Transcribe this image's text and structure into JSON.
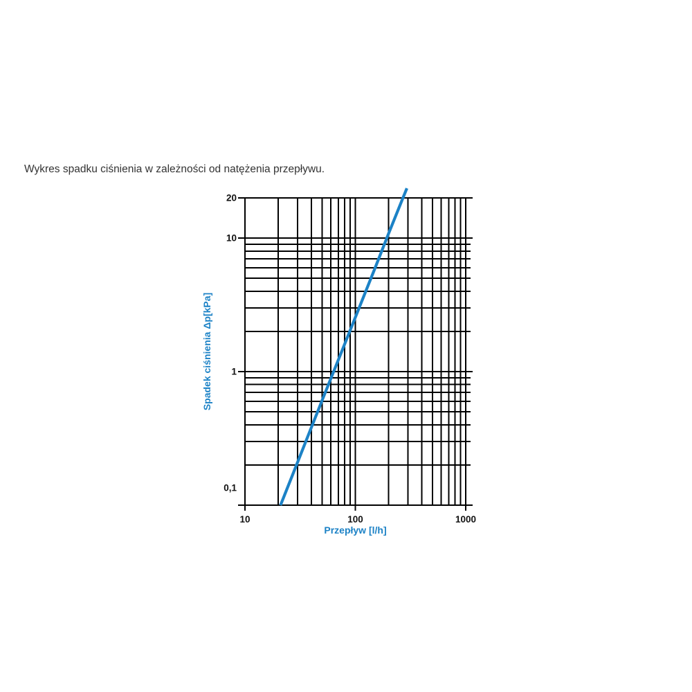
{
  "caption": "Wykres spadku ciśnienia w zależności od natężenia przepływu.",
  "chart_data": {
    "type": "line",
    "title": "Wykres spadku ciśnienia w zależności od natężenia przepływu.",
    "xlabel": "Przepływ [l/h]",
    "ylabel": "Spadek ciśnienia Δp[kPa]",
    "x_axis": {
      "scale": "log",
      "min": 10,
      "max": 1000,
      "ticks": [
        {
          "value": 10,
          "label": "10"
        },
        {
          "value": 100,
          "label": "100"
        },
        {
          "value": 1000,
          "label": "1000"
        }
      ],
      "minor_gridlines": true
    },
    "y_axis": {
      "scale": "log",
      "min": 0.1,
      "max": 20,
      "ticks": [
        {
          "value": 20,
          "label": "20"
        },
        {
          "value": 10,
          "label": "10"
        },
        {
          "value": 1,
          "label": "1"
        },
        {
          "value": 0.1,
          "label": "0,1",
          "label_offset_y": -25
        }
      ],
      "minor_gridlines": true
    },
    "grid": {
      "show": true,
      "color": "#000000",
      "full_minor": true
    },
    "legend": null,
    "series": [
      {
        "name": "spadek ciśnienia",
        "color": "#1c82c6",
        "stroke_width": 4.2,
        "straight_in_loglog": true,
        "points": [
          [
            21,
            0.1
          ],
          [
            30,
            0.21
          ],
          [
            50,
            0.61
          ],
          [
            70,
            1.22
          ],
          [
            100,
            2.55
          ],
          [
            150,
            5.9
          ],
          [
            200,
            10.8
          ],
          [
            270,
            20
          ],
          [
            293,
            23.6
          ]
        ]
      }
    ]
  },
  "colors": {
    "axis_title": "#1c82c6",
    "tick_label": "#111111",
    "caption": "#333333",
    "grid": "#000000",
    "background": "#ffffff"
  }
}
